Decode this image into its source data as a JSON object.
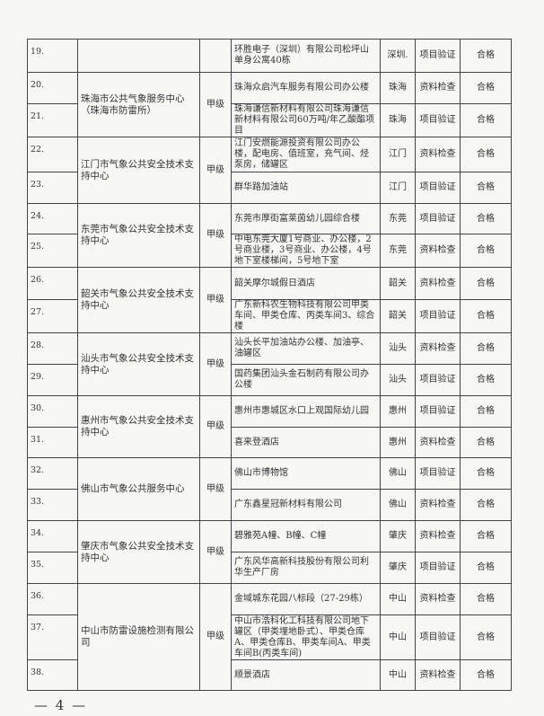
{
  "table": {
    "groups": [
      {
        "org": "",
        "level": "",
        "rows": [
          {
            "no": "19.",
            "project": "环胜电子（深圳）有限公司松坪山单身公寓40栋",
            "city": "深圳.",
            "type": "项目验证",
            "result": "合格"
          }
        ]
      },
      {
        "org": "珠海市公共气象服务中心（珠海市防雷所）",
        "level": "甲级",
        "rows": [
          {
            "no": "20.",
            "project": "珠海众启汽车服务有限公司办公楼",
            "city": "珠海",
            "type": "资料检查",
            "result": "合格"
          },
          {
            "no": "21.",
            "project": "珠海谦信新材料有限公司珠海谦信新材料有限公司60万吨/年乙酸酯项目",
            "city": "珠海",
            "type": "项目验证",
            "result": "合格"
          }
        ]
      },
      {
        "org": "江门市气象公共安全技术支持中心",
        "level": "甲级",
        "rows": [
          {
            "no": "22.",
            "project": "江门安燃能源投资有限公司办公楼，配电房、值班室，充气间、烃泵房，储罐区",
            "city": "江门",
            "type": "资料检查",
            "result": "合格"
          },
          {
            "no": "23.",
            "project": "群华路加油站",
            "city": "江门",
            "type": "项目验证",
            "result": "合格"
          }
        ]
      },
      {
        "org": "东莞市气象公共安全技术支持中心",
        "level": "甲级",
        "rows": [
          {
            "no": "24.",
            "project": "东莞市厚街富莱茵幼儿园综合楼",
            "city": "东莞",
            "type": "项目验证",
            "result": "合格"
          },
          {
            "no": "25.",
            "project": "中电东莞大厦1号商业、办公楼，2号商业楼，3号商业、办公楼，4号地下室楼梯间，5号地下室",
            "city": "东莞",
            "type": "资料检查",
            "result": "合格"
          }
        ]
      },
      {
        "org": "韶关市气象公共安全技术支持中心",
        "level": "甲级",
        "rows": [
          {
            "no": "26.",
            "project": "韶关摩尔城假日酒店",
            "city": "韶关",
            "type": "资料检查",
            "result": "合格"
          },
          {
            "no": "27.",
            "project": "广东新科农生物科技有限公司甲类车间、甲类仓库、丙类车间3、综合楼",
            "city": "韶关",
            "type": "项目验证",
            "result": "合格"
          }
        ]
      },
      {
        "org": "汕头市气象公共安全技术支持中心",
        "level": "甲级",
        "rows": [
          {
            "no": "28.",
            "project": "汕头长平加油站办公楼、加油亭、油罐区",
            "city": "汕头",
            "type": "资料检查",
            "result": "合格"
          },
          {
            "no": "29.",
            "project": "国药集团汕头金石制药有限公司办公楼",
            "city": "汕头",
            "type": "项目验证",
            "result": "合格"
          }
        ]
      },
      {
        "org": "惠州市气象公共安全技术支持中心",
        "level": "甲级",
        "rows": [
          {
            "no": "30.",
            "project": "惠州市惠城区水口上观国际幼儿园",
            "city": "惠州",
            "type": "项目验证",
            "result": "合格"
          },
          {
            "no": "31.",
            "project": "喜来登酒店",
            "city": "惠州",
            "type": "资料检查",
            "result": "合格"
          }
        ]
      },
      {
        "org": "佛山市气象公共服务中心",
        "level": "甲级",
        "rows": [
          {
            "no": "32.",
            "project": "佛山市博物馆",
            "city": "佛山",
            "type": "项目验证",
            "result": "合格"
          },
          {
            "no": "33.",
            "project": "广东鑫星冠新材料有限公司",
            "city": "佛山",
            "type": "资料检查",
            "result": "合格"
          }
        ]
      },
      {
        "org": "肇庆市气象公共安全技术支持中心",
        "level": "甲级",
        "rows": [
          {
            "no": "34.",
            "project": "碧雅苑A幢、B幢、C幢",
            "city": "肇庆",
            "type": "资料检查",
            "result": "合格"
          },
          {
            "no": "35.",
            "project": "广东风华高新科技股份有限公司利华生产厂房",
            "city": "肇庆",
            "type": "项目验证",
            "result": "合格"
          }
        ]
      },
      {
        "org": "中山市防雷设施检测有限公司",
        "level": "甲级",
        "rows": [
          {
            "no": "36.",
            "project": "金域城东花园八标段（27-29栋）",
            "city": "中山",
            "type": "资料检查",
            "result": "合格"
          },
          {
            "no": "37.",
            "project": "中山市浩科化工科技有限公司地下罐区（甲类埋地卧式）、甲类仓库A、甲类仓库B、甲类车间A、甲类车间B(丙类车间)",
            "city": "中山",
            "type": "项目验证",
            "result": "合格"
          },
          {
            "no": "38.",
            "project": "顺景酒店",
            "city": "中山",
            "type": "资料检查",
            "result": "合格"
          }
        ]
      }
    ]
  },
  "footer": {
    "page_number": "— 4 —"
  }
}
